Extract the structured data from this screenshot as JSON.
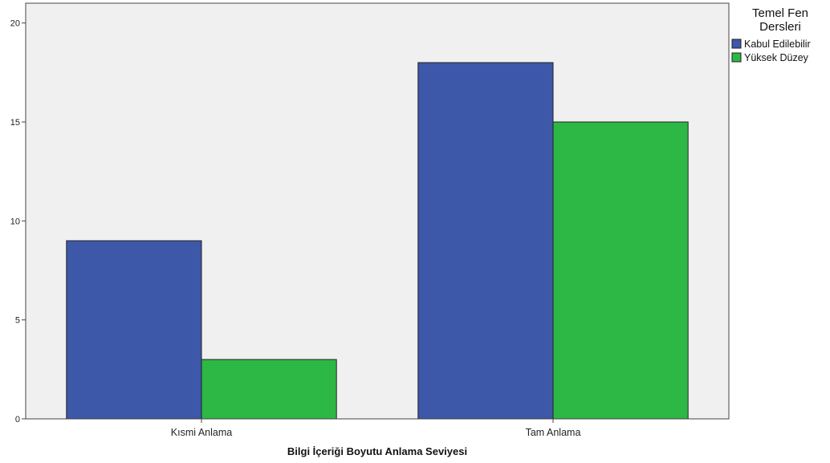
{
  "chart_data": {
    "type": "bar",
    "categories": [
      "Kısmi Anlama",
      "Tam Anlama"
    ],
    "series": [
      {
        "name": "Kabul Edilebilir",
        "values": [
          9,
          18
        ],
        "color": "#3d57a9"
      },
      {
        "name": "Yüksek Düzey",
        "values": [
          3,
          15
        ],
        "color": "#2db745"
      }
    ],
    "xlabel": "Bilgi İçeriği Boyutu Anlama Seviyesi",
    "ylabel": "",
    "ylim": [
      0,
      21
    ],
    "yticks": [
      0,
      5,
      10,
      15,
      20
    ],
    "legend": {
      "title_lines": [
        "Temel Fen",
        "Dersleri"
      ],
      "placement": "right"
    },
    "plot_background": "#f0f0f0",
    "grid": false
  }
}
